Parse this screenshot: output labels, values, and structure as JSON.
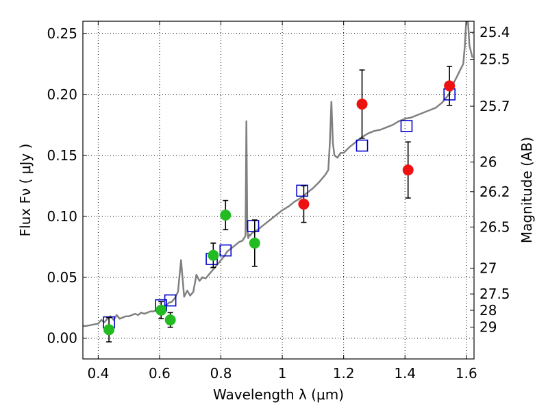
{
  "chart_data": {
    "type": "scatter",
    "xlabel": "Wavelength  λ (μm)",
    "ylabel": "Flux  Fν  ( μJy )",
    "ylabel_right": "Magnitude (AB)",
    "xlim": [
      0.35,
      1.625
    ],
    "ylim": [
      -0.017,
      0.26
    ],
    "grid": true,
    "x_ticks": [
      0.4,
      0.6,
      0.8,
      1.0,
      1.2,
      1.4,
      1.6
    ],
    "x_tick_labels": [
      "0.4",
      "0.6",
      "0.8",
      "1",
      "1.2",
      "1.4",
      "1.6"
    ],
    "y_ticks": [
      0.0,
      0.05,
      0.1,
      0.15,
      0.2,
      0.25
    ],
    "y_tick_labels": [
      "0.00",
      "0.05",
      "0.10",
      "0.15",
      "0.20",
      "0.25"
    ],
    "mag_ticks": [
      {
        "flux": 0.2509,
        "label": "25.4"
      },
      {
        "flux": 0.2288,
        "label": "25.5"
      },
      {
        "flux": 0.1903,
        "label": "25.7"
      },
      {
        "flux": 0.1445,
        "label": "26"
      },
      {
        "flux": 0.1202,
        "label": "26.2"
      },
      {
        "flux": 0.0912,
        "label": "26.5"
      },
      {
        "flux": 0.0575,
        "label": "27"
      },
      {
        "flux": 0.0363,
        "label": "27.5"
      },
      {
        "flux": 0.0229,
        "label": "28"
      },
      {
        "flux": 0.0091,
        "label": "29"
      }
    ],
    "series": [
      {
        "color": "#808080",
        "kind": "line",
        "x": [
          0.35,
          0.36,
          0.38,
          0.4,
          0.41,
          0.42,
          0.43,
          0.44,
          0.45,
          0.46,
          0.47,
          0.48,
          0.49,
          0.5,
          0.51,
          0.52,
          0.53,
          0.54,
          0.55,
          0.56,
          0.57,
          0.58,
          0.59,
          0.6,
          0.61,
          0.62,
          0.63,
          0.64,
          0.65,
          0.66,
          0.67,
          0.68,
          0.69,
          0.7,
          0.71,
          0.72,
          0.73,
          0.74,
          0.75,
          0.76,
          0.77,
          0.78,
          0.79,
          0.8,
          0.81,
          0.82,
          0.83,
          0.84,
          0.85,
          0.86,
          0.87,
          0.88,
          0.883,
          0.886,
          0.889,
          0.892,
          0.895,
          0.9,
          0.92,
          0.94,
          0.96,
          0.98,
          1.0,
          1.02,
          1.04,
          1.06,
          1.08,
          1.1,
          1.12,
          1.14,
          1.15,
          1.155,
          1.16,
          1.165,
          1.17,
          1.18,
          1.19,
          1.2,
          1.22,
          1.24,
          1.26,
          1.28,
          1.3,
          1.32,
          1.34,
          1.36,
          1.38,
          1.4,
          1.42,
          1.44,
          1.46,
          1.48,
          1.5,
          1.52,
          1.54,
          1.55,
          1.56,
          1.57,
          1.58,
          1.59,
          1.595,
          1.6,
          1.605,
          1.61,
          1.62
        ],
        "y": [
          0.01,
          0.01,
          0.011,
          0.012,
          0.015,
          0.013,
          0.016,
          0.018,
          0.015,
          0.019,
          0.016,
          0.017,
          0.018,
          0.018,
          0.019,
          0.02,
          0.019,
          0.021,
          0.02,
          0.021,
          0.022,
          0.022,
          0.023,
          0.023,
          0.025,
          0.027,
          0.029,
          0.03,
          0.033,
          0.038,
          0.064,
          0.034,
          0.039,
          0.035,
          0.038,
          0.052,
          0.047,
          0.05,
          0.049,
          0.052,
          0.055,
          0.058,
          0.061,
          0.064,
          0.067,
          0.071,
          0.073,
          0.075,
          0.077,
          0.079,
          0.08,
          0.084,
          0.178,
          0.09,
          0.082,
          0.085,
          0.084,
          0.086,
          0.089,
          0.093,
          0.097,
          0.101,
          0.105,
          0.108,
          0.112,
          0.115,
          0.119,
          0.123,
          0.128,
          0.134,
          0.138,
          0.16,
          0.194,
          0.16,
          0.15,
          0.148,
          0.152,
          0.152,
          0.157,
          0.161,
          0.165,
          0.168,
          0.17,
          0.171,
          0.173,
          0.175,
          0.178,
          0.18,
          0.181,
          0.183,
          0.185,
          0.187,
          0.189,
          0.193,
          0.199,
          0.203,
          0.21,
          0.215,
          0.22,
          0.225,
          0.24,
          0.262,
          0.262,
          0.24,
          0.23
        ]
      },
      {
        "color": "#0000cc",
        "kind": "open-square",
        "x": [
          0.435,
          0.605,
          0.635,
          0.77,
          0.815,
          0.905,
          1.065,
          1.26,
          1.405,
          1.545
        ],
        "y": [
          0.013,
          0.027,
          0.031,
          0.065,
          0.072,
          0.092,
          0.121,
          0.158,
          0.174,
          0.2
        ]
      },
      {
        "color": "#22bb22",
        "kind": "filled-circle",
        "x": [
          0.435,
          0.605,
          0.635,
          0.775,
          0.815,
          0.91
        ],
        "y": [
          0.007,
          0.023,
          0.015,
          0.068,
          0.101,
          0.078
        ],
        "yerr": [
          0.01,
          0.007,
          0.006,
          0.01,
          0.012,
          0.019
        ]
      },
      {
        "color": "#ee1111",
        "kind": "filled-circle",
        "x": [
          1.07,
          1.26,
          1.41,
          1.545
        ],
        "y": [
          0.11,
          0.192,
          0.138,
          0.207
        ],
        "yerr": [
          0.015,
          0.028,
          0.023,
          0.016
        ]
      }
    ]
  }
}
